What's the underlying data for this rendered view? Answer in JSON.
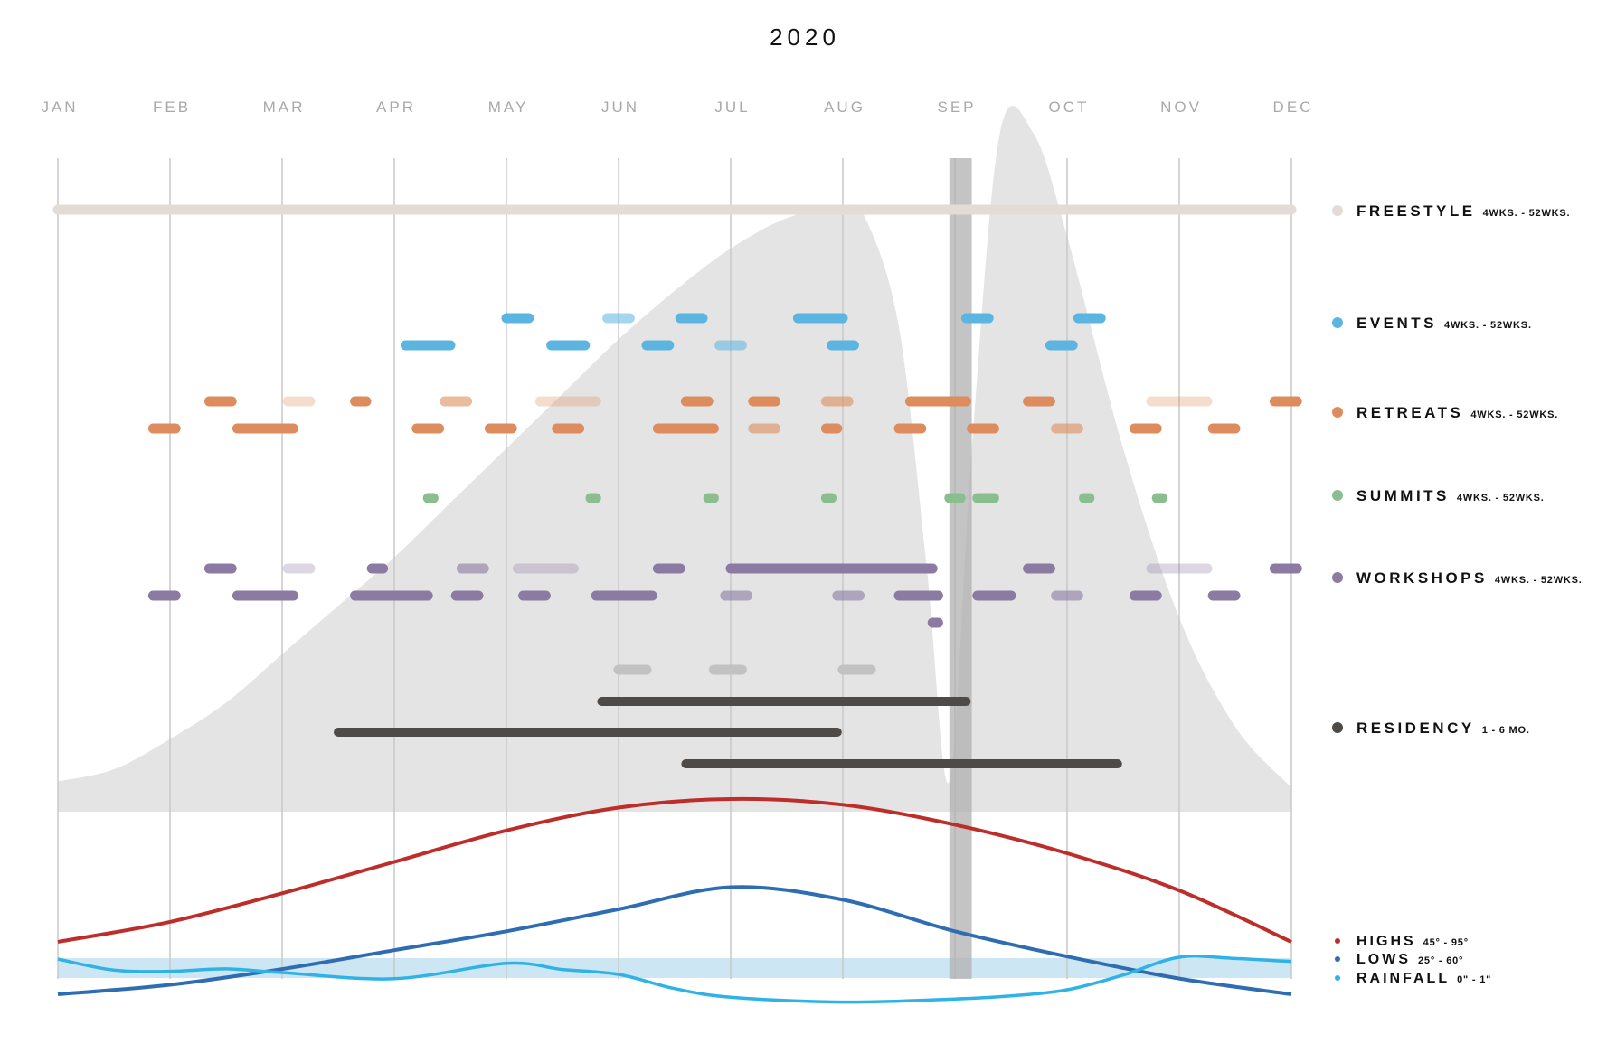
{
  "chart_data": {
    "type": "timeline",
    "title": "2020",
    "months": [
      "JAN",
      "FEB",
      "MAR",
      "APR",
      "MAY",
      "JUN",
      "JUL",
      "AUG",
      "SEP",
      "OCT",
      "NOV",
      "DEC"
    ],
    "x_range": [
      0,
      11
    ],
    "colors": {
      "freestyle": "#e3dcd6",
      "events": "#5cb4e0",
      "retreats": "#dd8d5d",
      "summits": "#8bbe8f",
      "workshops": "#8b7aa1",
      "residency": "#4d4a48",
      "highs": "#bd2e2a",
      "lows": "#2e6db2",
      "rainfall": "#2fb3e6",
      "attendance": "#e4e4e4",
      "marker": "#b0b0b0",
      "rain_band": "#cde6f4",
      "ghost": "#c2c2c2",
      "gridline": "#c8c8c8"
    },
    "legend": [
      {
        "key": "freestyle",
        "label": "FREESTYLE",
        "sub": "4WKS. - 52WKS.",
        "color": "#e3dcd6"
      },
      {
        "key": "events",
        "label": "EVENTS",
        "sub": "4WKS. - 52WKS.",
        "color": "#5cb4e0"
      },
      {
        "key": "retreats",
        "label": "RETREATS",
        "sub": "4WKS. - 52WKS.",
        "color": "#dd8d5d"
      },
      {
        "key": "summits",
        "label": "SUMMITS",
        "sub": "4WKS. - 52WKS.",
        "color": "#8bbe8f"
      },
      {
        "key": "workshops",
        "label": "WORKSHOPS",
        "sub": "4WKS. - 52WKS.",
        "color": "#8b7aa1"
      },
      {
        "key": "residency",
        "label": "RESIDENCY",
        "sub": "1 - 6 MO.",
        "color": "#4d4a48"
      }
    ],
    "weather_legend": [
      {
        "key": "highs",
        "label": "HIGHS",
        "sub": "45° - 95°",
        "color": "#bd2e2a"
      },
      {
        "key": "lows",
        "label": "LOWS",
        "sub": "25° - 60°",
        "color": "#2e6db2"
      },
      {
        "key": "rainfall",
        "label": "RAINFALL",
        "sub": "0\" - 1\"",
        "color": "#2fb3e6"
      }
    ],
    "marker": {
      "start": 7.95,
      "end": 8.15
    },
    "segments": [
      {
        "series": "freestyle",
        "lane": 0,
        "start": 0.0,
        "end": 11.0,
        "opacity": 1
      },
      {
        "series": "events",
        "lane": 0,
        "start": 4.0,
        "end": 4.2,
        "opacity": 1
      },
      {
        "series": "events",
        "lane": 0,
        "start": 4.9,
        "end": 5.1,
        "opacity": 0.55
      },
      {
        "series": "events",
        "lane": 0,
        "start": 5.55,
        "end": 5.75,
        "opacity": 1
      },
      {
        "series": "events",
        "lane": 0,
        "start": 6.6,
        "end": 7.0,
        "opacity": 1
      },
      {
        "series": "events",
        "lane": 0,
        "start": 8.1,
        "end": 8.3,
        "opacity": 1
      },
      {
        "series": "events",
        "lane": 0,
        "start": 9.1,
        "end": 9.3,
        "opacity": 1
      },
      {
        "series": "events",
        "lane": 1,
        "start": 3.1,
        "end": 3.5,
        "opacity": 1
      },
      {
        "series": "events",
        "lane": 1,
        "start": 4.4,
        "end": 4.7,
        "opacity": 1
      },
      {
        "series": "events",
        "lane": 1,
        "start": 5.25,
        "end": 5.45,
        "opacity": 1
      },
      {
        "series": "events",
        "lane": 1,
        "start": 5.9,
        "end": 6.1,
        "opacity": 0.55
      },
      {
        "series": "events",
        "lane": 1,
        "start": 6.9,
        "end": 7.1,
        "opacity": 1
      },
      {
        "series": "events",
        "lane": 1,
        "start": 8.85,
        "end": 9.05,
        "opacity": 1
      },
      {
        "series": "retreats",
        "lane": 0,
        "start": 1.35,
        "end": 1.55,
        "opacity": 1
      },
      {
        "series": "retreats",
        "lane": 0,
        "start": 2.05,
        "end": 2.25,
        "opacity": 0.3
      },
      {
        "series": "retreats",
        "lane": 0,
        "start": 2.65,
        "end": 2.75,
        "opacity": 1
      },
      {
        "series": "retreats",
        "lane": 0,
        "start": 3.45,
        "end": 3.65,
        "opacity": 0.6
      },
      {
        "series": "retreats",
        "lane": 0,
        "start": 4.3,
        "end": 4.8,
        "opacity": 0.3
      },
      {
        "series": "retreats",
        "lane": 0,
        "start": 5.6,
        "end": 5.8,
        "opacity": 1
      },
      {
        "series": "retreats",
        "lane": 0,
        "start": 6.2,
        "end": 6.4,
        "opacity": 1
      },
      {
        "series": "retreats",
        "lane": 0,
        "start": 6.85,
        "end": 7.05,
        "opacity": 0.6
      },
      {
        "series": "retreats",
        "lane": 0,
        "start": 7.6,
        "end": 8.1,
        "opacity": 1
      },
      {
        "series": "retreats",
        "lane": 0,
        "start": 8.65,
        "end": 8.85,
        "opacity": 1
      },
      {
        "series": "retreats",
        "lane": 0,
        "start": 9.75,
        "end": 10.25,
        "opacity": 0.3
      },
      {
        "series": "retreats",
        "lane": 0,
        "start": 10.85,
        "end": 11.05,
        "opacity": 1
      },
      {
        "series": "retreats",
        "lane": 1,
        "start": 0.85,
        "end": 1.05,
        "opacity": 1
      },
      {
        "series": "retreats",
        "lane": 1,
        "start": 1.6,
        "end": 2.1,
        "opacity": 1
      },
      {
        "series": "retreats",
        "lane": 1,
        "start": 3.2,
        "end": 3.4,
        "opacity": 1
      },
      {
        "series": "retreats",
        "lane": 1,
        "start": 3.85,
        "end": 4.05,
        "opacity": 1
      },
      {
        "series": "retreats",
        "lane": 1,
        "start": 4.45,
        "end": 4.65,
        "opacity": 1
      },
      {
        "series": "retreats",
        "lane": 1,
        "start": 5.35,
        "end": 5.85,
        "opacity": 1
      },
      {
        "series": "retreats",
        "lane": 1,
        "start": 6.2,
        "end": 6.4,
        "opacity": 0.6
      },
      {
        "series": "retreats",
        "lane": 1,
        "start": 6.85,
        "end": 6.95,
        "opacity": 1
      },
      {
        "series": "retreats",
        "lane": 1,
        "start": 7.5,
        "end": 7.7,
        "opacity": 1
      },
      {
        "series": "retreats",
        "lane": 1,
        "start": 8.15,
        "end": 8.35,
        "opacity": 1
      },
      {
        "series": "retreats",
        "lane": 1,
        "start": 8.9,
        "end": 9.1,
        "opacity": 0.6
      },
      {
        "series": "retreats",
        "lane": 1,
        "start": 9.6,
        "end": 9.8,
        "opacity": 1
      },
      {
        "series": "retreats",
        "lane": 1,
        "start": 10.3,
        "end": 10.5,
        "opacity": 1
      },
      {
        "series": "summits",
        "lane": 0,
        "start": 3.3,
        "end": 3.35,
        "opacity": 1
      },
      {
        "series": "summits",
        "lane": 0,
        "start": 4.75,
        "end": 4.8,
        "opacity": 1
      },
      {
        "series": "summits",
        "lane": 0,
        "start": 5.8,
        "end": 5.85,
        "opacity": 1
      },
      {
        "series": "summits",
        "lane": 0,
        "start": 6.85,
        "end": 6.9,
        "opacity": 1
      },
      {
        "series": "summits",
        "lane": 0,
        "start": 7.95,
        "end": 8.05,
        "opacity": 1
      },
      {
        "series": "summits",
        "lane": 0,
        "start": 8.2,
        "end": 8.35,
        "opacity": 1
      },
      {
        "series": "summits",
        "lane": 0,
        "start": 9.15,
        "end": 9.2,
        "opacity": 1
      },
      {
        "series": "summits",
        "lane": 0,
        "start": 9.8,
        "end": 9.85,
        "opacity": 1
      },
      {
        "series": "workshops",
        "lane": 0,
        "start": 1.35,
        "end": 1.55,
        "opacity": 1
      },
      {
        "series": "workshops",
        "lane": 0,
        "start": 2.05,
        "end": 2.25,
        "opacity": 0.3
      },
      {
        "series": "workshops",
        "lane": 0,
        "start": 2.8,
        "end": 2.9,
        "opacity": 1
      },
      {
        "series": "workshops",
        "lane": 0,
        "start": 3.6,
        "end": 3.8,
        "opacity": 0.6
      },
      {
        "series": "workshops",
        "lane": 0,
        "start": 4.1,
        "end": 4.6,
        "opacity": 0.3
      },
      {
        "series": "workshops",
        "lane": 0,
        "start": 5.35,
        "end": 5.55,
        "opacity": 1
      },
      {
        "series": "workshops",
        "lane": 0,
        "start": 6.0,
        "end": 7.8,
        "opacity": 1
      },
      {
        "series": "workshops",
        "lane": 0,
        "start": 8.65,
        "end": 8.85,
        "opacity": 1
      },
      {
        "series": "workshops",
        "lane": 0,
        "start": 9.75,
        "end": 10.25,
        "opacity": 0.3
      },
      {
        "series": "workshops",
        "lane": 0,
        "start": 10.85,
        "end": 11.05,
        "opacity": 1
      },
      {
        "series": "workshops",
        "lane": 1,
        "start": 0.85,
        "end": 1.05,
        "opacity": 1
      },
      {
        "series": "workshops",
        "lane": 1,
        "start": 1.6,
        "end": 2.1,
        "opacity": 1
      },
      {
        "series": "workshops",
        "lane": 1,
        "start": 2.65,
        "end": 3.3,
        "opacity": 1
      },
      {
        "series": "workshops",
        "lane": 1,
        "start": 3.55,
        "end": 3.75,
        "opacity": 1
      },
      {
        "series": "workshops",
        "lane": 1,
        "start": 4.15,
        "end": 4.35,
        "opacity": 1
      },
      {
        "series": "workshops",
        "lane": 1,
        "start": 4.8,
        "end": 5.3,
        "opacity": 1
      },
      {
        "series": "workshops",
        "lane": 1,
        "start": 5.95,
        "end": 6.15,
        "opacity": 0.6
      },
      {
        "series": "workshops",
        "lane": 1,
        "start": 6.95,
        "end": 7.15,
        "opacity": 0.6
      },
      {
        "series": "workshops",
        "lane": 1,
        "start": 7.5,
        "end": 7.85,
        "opacity": 1
      },
      {
        "series": "workshops",
        "lane": 1,
        "start": 8.2,
        "end": 8.5,
        "opacity": 1
      },
      {
        "series": "workshops",
        "lane": 1,
        "start": 8.9,
        "end": 9.1,
        "opacity": 0.6
      },
      {
        "series": "workshops",
        "lane": 1,
        "start": 9.6,
        "end": 9.8,
        "opacity": 1
      },
      {
        "series": "workshops",
        "lane": 1,
        "start": 10.3,
        "end": 10.5,
        "opacity": 1
      },
      {
        "series": "workshops",
        "lane": 2,
        "start": 7.8,
        "end": 7.85,
        "opacity": 1
      },
      {
        "series": "ghost",
        "lane": 0,
        "start": 5.0,
        "end": 5.25,
        "opacity": 1
      },
      {
        "series": "ghost",
        "lane": 0,
        "start": 5.85,
        "end": 6.1,
        "opacity": 1
      },
      {
        "series": "ghost",
        "lane": 0,
        "start": 7.0,
        "end": 7.25,
        "opacity": 1
      },
      {
        "series": "residency",
        "lane": 0,
        "start": 4.85,
        "end": 8.1,
        "opacity": 1
      },
      {
        "series": "residency",
        "lane": 1,
        "start": 2.5,
        "end": 6.95,
        "opacity": 1
      },
      {
        "series": "residency",
        "lane": 2,
        "start": 5.6,
        "end": 9.45,
        "opacity": 1
      }
    ],
    "attendance_curve": [
      [
        0,
        0.05
      ],
      [
        0.5,
        0.07
      ],
      [
        1,
        0.12
      ],
      [
        1.5,
        0.18
      ],
      [
        2,
        0.26
      ],
      [
        2.5,
        0.34
      ],
      [
        3,
        0.42
      ],
      [
        3.5,
        0.51
      ],
      [
        4,
        0.6
      ],
      [
        4.5,
        0.69
      ],
      [
        5,
        0.78
      ],
      [
        5.5,
        0.86
      ],
      [
        6,
        0.93
      ],
      [
        6.5,
        0.98
      ],
      [
        7,
        1.0
      ],
      [
        7.2,
        0.98
      ],
      [
        7.5,
        0.8
      ],
      [
        7.75,
        0.4
      ],
      [
        7.95,
        0.05
      ],
      [
        8.15,
        0.6
      ],
      [
        8.4,
        1.12
      ],
      [
        8.7,
        1.12
      ],
      [
        9.0,
        0.95
      ],
      [
        9.5,
        0.6
      ],
      [
        10.0,
        0.32
      ],
      [
        10.5,
        0.14
      ],
      [
        11,
        0.04
      ]
    ],
    "highs": [
      [
        0,
        45
      ],
      [
        1,
        52
      ],
      [
        2,
        62
      ],
      [
        3,
        73
      ],
      [
        4,
        84
      ],
      [
        5,
        92
      ],
      [
        6,
        95
      ],
      [
        7,
        93
      ],
      [
        8,
        86
      ],
      [
        9,
        76
      ],
      [
        10,
        63
      ],
      [
        11,
        45
      ]
    ],
    "lows": [
      [
        0,
        25
      ],
      [
        1,
        28
      ],
      [
        2,
        33
      ],
      [
        3,
        39
      ],
      [
        4,
        45
      ],
      [
        5,
        52
      ],
      [
        6,
        59
      ],
      [
        7,
        55
      ],
      [
        8,
        45
      ],
      [
        9,
        37
      ],
      [
        10,
        30
      ],
      [
        11,
        25
      ]
    ],
    "rainfall": [
      [
        0,
        0.72
      ],
      [
        0.5,
        0.54
      ],
      [
        1,
        0.52
      ],
      [
        1.5,
        0.56
      ],
      [
        2,
        0.5
      ],
      [
        3,
        0.4
      ],
      [
        4,
        0.65
      ],
      [
        4.5,
        0.55
      ],
      [
        5,
        0.47
      ],
      [
        5.5,
        0.24
      ],
      [
        6,
        0.1
      ],
      [
        7,
        0.02
      ],
      [
        8,
        0.07
      ],
      [
        8.5,
        0.12
      ],
      [
        9,
        0.22
      ],
      [
        9.5,
        0.46
      ],
      [
        10,
        0.75
      ],
      [
        10.5,
        0.73
      ],
      [
        11,
        0.68
      ]
    ],
    "highs_range": [
      45,
      95
    ],
    "lows_range": [
      25,
      60
    ],
    "rainfall_range": [
      0,
      1
    ]
  }
}
